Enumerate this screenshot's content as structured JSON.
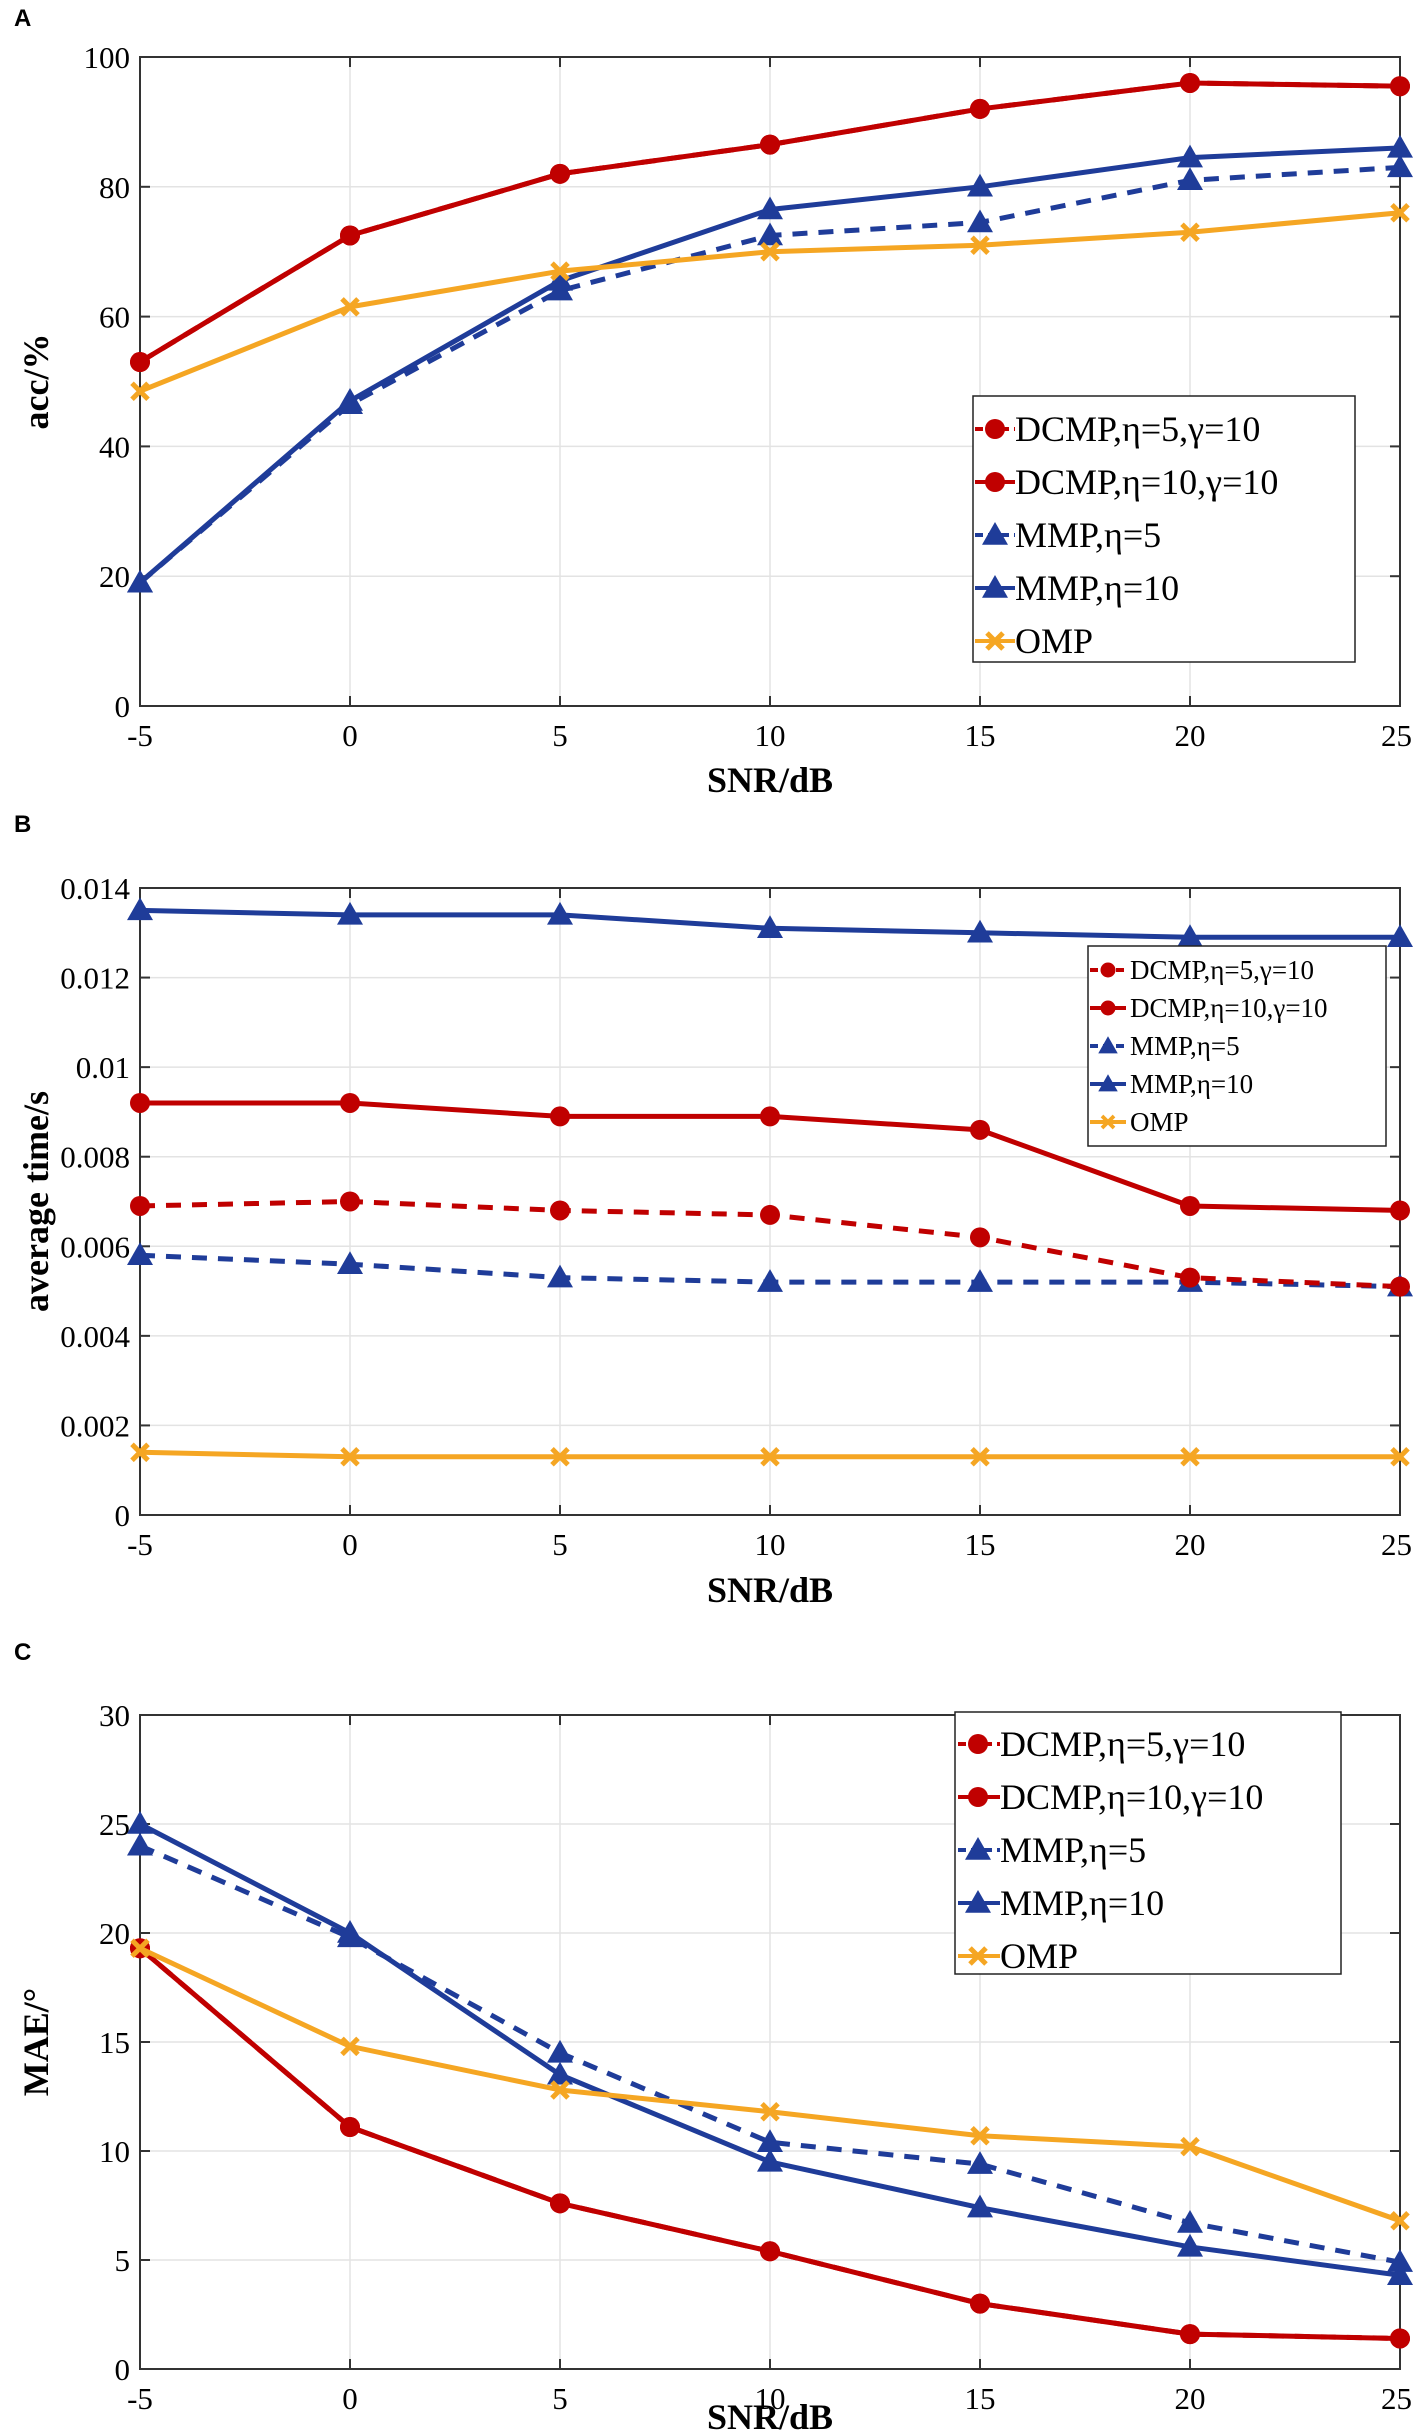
{
  "colors": {
    "dcmp": "#c00000",
    "mmp": "#1f3c99",
    "omp": "#f5a623"
  },
  "chart_data": [
    {
      "panel": "A",
      "type": "line",
      "xlabel": "SNR/dB",
      "ylabel": "acc/%",
      "x": [
        -5,
        0,
        5,
        10,
        15,
        20,
        25
      ],
      "xlim": [
        -5,
        25
      ],
      "ylim": [
        0,
        100
      ],
      "xticks": [
        "-5",
        "0",
        "5",
        "10",
        "15",
        "20",
        "25"
      ],
      "yticks": [
        "0",
        "20",
        "40",
        "60",
        "80",
        "100"
      ],
      "legend_position": "bottom-right",
      "series": [
        {
          "name": "DCMP,η=5,γ=10",
          "values": [
            53,
            72.5,
            82,
            86.5,
            92,
            96,
            95.5
          ]
        },
        {
          "name": "DCMP,η=10,γ=10",
          "values": [
            53,
            72.5,
            82,
            86.5,
            92,
            96,
            95.5
          ]
        },
        {
          "name": "MMP,η=5",
          "values": [
            19,
            46.5,
            64,
            72.5,
            74.5,
            81,
            83
          ]
        },
        {
          "name": "MMP,η=10",
          "values": [
            19,
            47,
            65.5,
            76.5,
            80,
            84.5,
            86
          ]
        },
        {
          "name": "OMP",
          "values": [
            48.5,
            61.5,
            67,
            70,
            71,
            73,
            76
          ]
        }
      ]
    },
    {
      "panel": "B",
      "type": "line",
      "xlabel": "SNR/dB",
      "ylabel": "average time/s",
      "x": [
        -5,
        0,
        5,
        10,
        15,
        20,
        25
      ],
      "xlim": [
        -5,
        25
      ],
      "ylim": [
        0,
        0.014
      ],
      "xticks": [
        "-5",
        "0",
        "5",
        "10",
        "15",
        "20",
        "25"
      ],
      "yticks": [
        "0",
        "0.002",
        "0.004",
        "0.006",
        "0.008",
        "0.01",
        "0.012",
        "0.014"
      ],
      "legend_position": "top-right",
      "series": [
        {
          "name": "DCMP,η=5,γ=10",
          "values": [
            0.0069,
            0.007,
            0.0068,
            0.0067,
            0.0062,
            0.0053,
            0.0051
          ]
        },
        {
          "name": "DCMP,η=10,γ=10",
          "values": [
            0.0092,
            0.0092,
            0.0089,
            0.0089,
            0.0086,
            0.0069,
            0.0068
          ]
        },
        {
          "name": "MMP,η=5",
          "values": [
            0.0058,
            0.0056,
            0.0053,
            0.0052,
            0.0052,
            0.0052,
            0.0051
          ]
        },
        {
          "name": "MMP,η=10",
          "values": [
            0.0135,
            0.0134,
            0.0134,
            0.0131,
            0.013,
            0.0129,
            0.0129
          ]
        },
        {
          "name": "OMP",
          "values": [
            0.0014,
            0.0013,
            0.0013,
            0.0013,
            0.0013,
            0.0013,
            0.0013
          ]
        }
      ]
    },
    {
      "panel": "C",
      "type": "line",
      "xlabel": "SNR/dB",
      "ylabel": "MAE/°",
      "x": [
        -5,
        0,
        5,
        10,
        15,
        20,
        25
      ],
      "xlim": [
        -5,
        25
      ],
      "ylim": [
        0,
        30
      ],
      "xticks": [
        "-5",
        "0",
        "5",
        "10",
        "15",
        "20",
        "25"
      ],
      "yticks": [
        "0",
        "5",
        "10",
        "15",
        "20",
        "25",
        "30"
      ],
      "legend_position": "top-right",
      "series": [
        {
          "name": "DCMP,η=5,γ=10",
          "values": [
            19.3,
            11.1,
            7.6,
            5.4,
            3.0,
            1.6,
            1.4
          ]
        },
        {
          "name": "DCMP,η=10,γ=10",
          "values": [
            19.3,
            11.1,
            7.6,
            5.4,
            3.0,
            1.6,
            1.4
          ]
        },
        {
          "name": "MMP,η=5",
          "values": [
            24,
            19.8,
            14.5,
            10.4,
            9.4,
            6.7,
            4.9
          ]
        },
        {
          "name": "MMP,η=10",
          "values": [
            25,
            20,
            13.5,
            9.5,
            7.4,
            5.6,
            4.3
          ]
        },
        {
          "name": "OMP",
          "values": [
            19.3,
            14.8,
            12.8,
            11.8,
            10.7,
            10.2,
            6.8
          ]
        }
      ]
    }
  ]
}
